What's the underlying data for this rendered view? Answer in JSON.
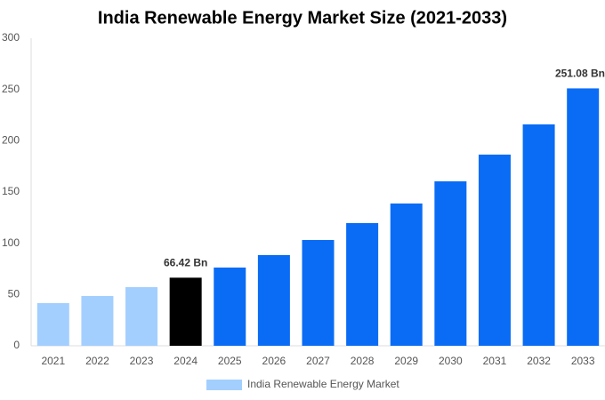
{
  "chart_data": {
    "type": "bar",
    "title": "India Renewable Energy Market Size (2021-2033)",
    "categories": [
      "2021",
      "2022",
      "2023",
      "2024",
      "2025",
      "2026",
      "2027",
      "2028",
      "2029",
      "2030",
      "2031",
      "2032",
      "2033"
    ],
    "series": [
      {
        "name": "India Renewable Energy Market",
        "color": "#a3cfff",
        "values": [
          41.6,
          48.6,
          57.2,
          66.42,
          76.3,
          88.5,
          103.2,
          119.7,
          138.8,
          160.4,
          186.5,
          216,
          251.08
        ],
        "value_labels": [
          null,
          null,
          null,
          "66.42 Bn",
          null,
          null,
          null,
          null,
          null,
          null,
          null,
          null,
          "251.08 Bn"
        ],
        "bar_colors": [
          "#a3cfff",
          "#a3cfff",
          "#a3cfff",
          "#000000",
          "#0a6cf5",
          "#0a6cf5",
          "#0a6cf5",
          "#0a6cf5",
          "#0a6cf5",
          "#0a6cf5",
          "#0a6cf5",
          "#0a6cf5",
          "#0a6cf5"
        ]
      }
    ],
    "ylim": [
      0,
      300
    ],
    "yticks": [
      0,
      50,
      100,
      150,
      200,
      250,
      300
    ],
    "grid": false,
    "legend": "bottom"
  }
}
